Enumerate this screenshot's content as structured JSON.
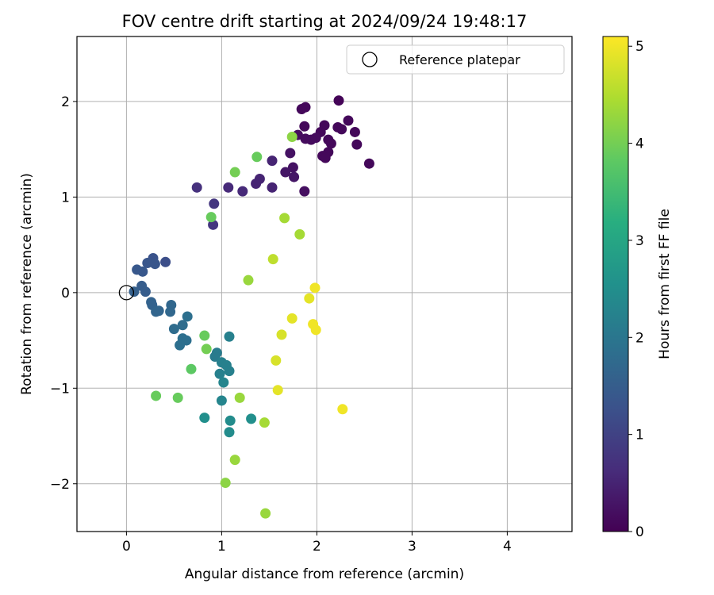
{
  "chart_data": {
    "type": "scatter",
    "title": "FOV centre drift starting at 2024/09/24 19:48:17",
    "xlabel": "Angular distance from reference (arcmin)",
    "ylabel": "Rotation from reference (arcmin)",
    "xlim": [
      -0.52,
      4.68
    ],
    "ylim": [
      -2.5,
      2.68
    ],
    "xticks": [
      0,
      1,
      2,
      3,
      4
    ],
    "yticks": [
      -2,
      -1,
      0,
      1,
      2
    ],
    "grid": true,
    "legend": {
      "position": "top-right",
      "entries": [
        "Reference platepar"
      ]
    },
    "reference_point": {
      "x": 0,
      "y": 0,
      "label": "Reference platepar"
    },
    "colorbar": {
      "label": "Hours from first FF file",
      "min": 0,
      "max": 5.1,
      "ticks": [
        0,
        1,
        2,
        3,
        4,
        5
      ],
      "colormap": "viridis"
    },
    "points": [
      {
        "x": 2.23,
        "y": 2.01,
        "c": 0.05
      },
      {
        "x": 1.88,
        "y": 1.94,
        "c": 0.1
      },
      {
        "x": 1.84,
        "y": 1.92,
        "c": 0.1
      },
      {
        "x": 2.33,
        "y": 1.8,
        "c": 0.1
      },
      {
        "x": 1.87,
        "y": 1.74,
        "c": 0.1
      },
      {
        "x": 1.8,
        "y": 1.65,
        "c": 0.15
      },
      {
        "x": 2.08,
        "y": 1.75,
        "c": 0.1
      },
      {
        "x": 2.22,
        "y": 1.73,
        "c": 0.1
      },
      {
        "x": 2.26,
        "y": 1.71,
        "c": 0.1
      },
      {
        "x": 2.04,
        "y": 1.68,
        "c": 0.1
      },
      {
        "x": 2.4,
        "y": 1.68,
        "c": 0.1
      },
      {
        "x": 1.99,
        "y": 1.62,
        "c": 0.15
      },
      {
        "x": 1.94,
        "y": 1.6,
        "c": 0.15
      },
      {
        "x": 1.88,
        "y": 1.61,
        "c": 0.15
      },
      {
        "x": 2.12,
        "y": 1.6,
        "c": 0.1
      },
      {
        "x": 2.15,
        "y": 1.56,
        "c": 0.1
      },
      {
        "x": 2.42,
        "y": 1.55,
        "c": 0.1
      },
      {
        "x": 2.12,
        "y": 1.47,
        "c": 0.1
      },
      {
        "x": 2.06,
        "y": 1.43,
        "c": 0.1
      },
      {
        "x": 2.09,
        "y": 1.41,
        "c": 0.1
      },
      {
        "x": 2.55,
        "y": 1.35,
        "c": 0.1
      },
      {
        "x": 1.72,
        "y": 1.46,
        "c": 0.25
      },
      {
        "x": 1.53,
        "y": 1.38,
        "c": 0.5
      },
      {
        "x": 1.75,
        "y": 1.31,
        "c": 0.25
      },
      {
        "x": 1.67,
        "y": 1.26,
        "c": 0.3
      },
      {
        "x": 1.76,
        "y": 1.21,
        "c": 0.3
      },
      {
        "x": 1.4,
        "y": 1.19,
        "c": 0.5
      },
      {
        "x": 1.36,
        "y": 1.14,
        "c": 0.5
      },
      {
        "x": 1.53,
        "y": 1.1,
        "c": 0.5
      },
      {
        "x": 1.07,
        "y": 1.1,
        "c": 0.6
      },
      {
        "x": 0.74,
        "y": 1.1,
        "c": 0.7
      },
      {
        "x": 1.22,
        "y": 1.06,
        "c": 0.6
      },
      {
        "x": 1.87,
        "y": 1.06,
        "c": 0.2
      },
      {
        "x": 0.92,
        "y": 0.93,
        "c": 0.8
      },
      {
        "x": 0.91,
        "y": 0.71,
        "c": 0.8
      },
      {
        "x": 0.41,
        "y": 0.32,
        "c": 1.2
      },
      {
        "x": 0.28,
        "y": 0.36,
        "c": 1.3
      },
      {
        "x": 0.22,
        "y": 0.31,
        "c": 1.35
      },
      {
        "x": 0.3,
        "y": 0.3,
        "c": 1.35
      },
      {
        "x": 0.11,
        "y": 0.24,
        "c": 1.4
      },
      {
        "x": 0.17,
        "y": 0.22,
        "c": 1.4
      },
      {
        "x": 0.16,
        "y": 0.07,
        "c": 1.5
      },
      {
        "x": 0.2,
        "y": 0.01,
        "c": 1.5
      },
      {
        "x": 0.08,
        "y": 0.01,
        "c": 1.55
      },
      {
        "x": 0.26,
        "y": -0.1,
        "c": 1.6
      },
      {
        "x": 0.27,
        "y": -0.13,
        "c": 1.6
      },
      {
        "x": 0.31,
        "y": -0.2,
        "c": 1.65
      },
      {
        "x": 0.34,
        "y": -0.19,
        "c": 1.65
      },
      {
        "x": 0.47,
        "y": -0.13,
        "c": 1.7
      },
      {
        "x": 0.46,
        "y": -0.2,
        "c": 1.7
      },
      {
        "x": 0.64,
        "y": -0.25,
        "c": 1.85
      },
      {
        "x": 0.59,
        "y": -0.34,
        "c": 1.8
      },
      {
        "x": 0.5,
        "y": -0.38,
        "c": 1.8
      },
      {
        "x": 0.59,
        "y": -0.48,
        "c": 1.85
      },
      {
        "x": 0.63,
        "y": -0.5,
        "c": 1.85
      },
      {
        "x": 0.56,
        "y": -0.55,
        "c": 1.85
      },
      {
        "x": 1.08,
        "y": -0.46,
        "c": 2.2
      },
      {
        "x": 0.95,
        "y": -0.63,
        "c": 2.1
      },
      {
        "x": 0.93,
        "y": -0.67,
        "c": 2.1
      },
      {
        "x": 1.0,
        "y": -0.73,
        "c": 2.2
      },
      {
        "x": 1.05,
        "y": -0.76,
        "c": 2.2
      },
      {
        "x": 1.08,
        "y": -0.82,
        "c": 2.2
      },
      {
        "x": 0.98,
        "y": -0.85,
        "c": 2.2
      },
      {
        "x": 1.02,
        "y": -0.94,
        "c": 2.3
      },
      {
        "x": 1.0,
        "y": -1.13,
        "c": 2.3
      },
      {
        "x": 0.82,
        "y": -1.31,
        "c": 2.5
      },
      {
        "x": 1.09,
        "y": -1.34,
        "c": 2.45
      },
      {
        "x": 1.31,
        "y": -1.32,
        "c": 2.5
      },
      {
        "x": 1.08,
        "y": -1.46,
        "c": 2.45
      },
      {
        "x": 0.82,
        "y": -0.45,
        "c": 3.9
      },
      {
        "x": 0.84,
        "y": -0.59,
        "c": 4.0
      },
      {
        "x": 0.68,
        "y": -0.8,
        "c": 3.8
      },
      {
        "x": 0.31,
        "y": -1.08,
        "c": 3.9
      },
      {
        "x": 0.54,
        "y": -1.1,
        "c": 3.9
      },
      {
        "x": 1.19,
        "y": -1.1,
        "c": 4.3
      },
      {
        "x": 1.45,
        "y": -1.36,
        "c": 4.4
      },
      {
        "x": 1.14,
        "y": -1.75,
        "c": 4.3
      },
      {
        "x": 1.04,
        "y": -1.99,
        "c": 4.2
      },
      {
        "x": 1.46,
        "y": -2.31,
        "c": 4.3
      },
      {
        "x": 0.89,
        "y": 0.79,
        "c": 3.9
      },
      {
        "x": 1.14,
        "y": 1.26,
        "c": 4.0
      },
      {
        "x": 1.37,
        "y": 1.42,
        "c": 3.9
      },
      {
        "x": 1.74,
        "y": 1.63,
        "c": 4.2
      },
      {
        "x": 1.66,
        "y": 0.78,
        "c": 4.4
      },
      {
        "x": 1.82,
        "y": 0.61,
        "c": 4.4
      },
      {
        "x": 1.54,
        "y": 0.35,
        "c": 4.6
      },
      {
        "x": 1.28,
        "y": 0.13,
        "c": 4.3
      },
      {
        "x": 1.98,
        "y": 0.05,
        "c": 5.0
      },
      {
        "x": 1.92,
        "y": -0.06,
        "c": 4.9
      },
      {
        "x": 1.74,
        "y": -0.27,
        "c": 4.9
      },
      {
        "x": 1.96,
        "y": -0.33,
        "c": 5.0
      },
      {
        "x": 1.99,
        "y": -0.39,
        "c": 5.0
      },
      {
        "x": 1.63,
        "y": -0.44,
        "c": 4.8
      },
      {
        "x": 1.57,
        "y": -0.71,
        "c": 4.8
      },
      {
        "x": 1.59,
        "y": -1.02,
        "c": 4.9
      },
      {
        "x": 2.27,
        "y": -1.22,
        "c": 5.0
      }
    ]
  }
}
